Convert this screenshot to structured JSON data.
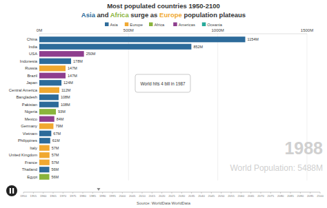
{
  "chart_data": {
    "type": "bar",
    "orientation": "horizontal",
    "title": "Most populated countries 1950-2100",
    "subtitle_parts": [
      {
        "text": "Asia",
        "color": "#2d6b9a"
      },
      {
        "text": " and ",
        "color": "#333333"
      },
      {
        "text": "Africa",
        "color": "#8ab43c"
      },
      {
        "text": " surge as ",
        "color": "#333333"
      },
      {
        "text": "Europe",
        "color": "#f0a830"
      },
      {
        "text": " population plateaus",
        "color": "#333333"
      }
    ],
    "legend_entries": [
      {
        "name": "Asia",
        "color": "#2d6b9a"
      },
      {
        "name": "Europe",
        "color": "#f0a830"
      },
      {
        "name": "Africa",
        "color": "#8ab43c"
      },
      {
        "name": "Americas",
        "color": "#8e3e8e"
      },
      {
        "name": "Oceania",
        "color": "#27a99a"
      }
    ],
    "categories": [
      "China",
      "India",
      "USA",
      "Indonesia",
      "Russia",
      "Brazil",
      "Japan",
      "Central America",
      "Bangladesh",
      "Pakistan",
      "Nigeria",
      "Mexico",
      "Germany",
      "Vietnam",
      "Philippines",
      "Italy",
      "United Kingdom",
      "France",
      "Thailand",
      "Egypt"
    ],
    "values": [
      1154,
      852,
      250,
      178,
      147,
      147,
      124,
      112,
      108,
      108,
      93,
      84,
      79,
      67,
      61,
      57,
      57,
      57,
      56,
      56
    ],
    "value_labels": [
      "1154M",
      "852M",
      "250M",
      "178M",
      "147M",
      "147M",
      "124M",
      "112M",
      "108M",
      "108M",
      "93M",
      "84M",
      "79M",
      "67M",
      "61M",
      "57M",
      "57M",
      "57M",
      "56M",
      "56M"
    ],
    "colors": [
      "#2d6b9a",
      "#2d6b9a",
      "#8e3e8e",
      "#2d6b9a",
      "#f0a830",
      "#8e3e8e",
      "#2d6b9a",
      "#f0a830",
      "#2d6b9a",
      "#2d6b9a",
      "#8ab43c",
      "#8e3e8e",
      "#f0a830",
      "#2d6b9a",
      "#2d6b9a",
      "#f0a830",
      "#f0a830",
      "#f0a830",
      "#2d6b9a",
      "#8ab43c"
    ],
    "data_labels": true,
    "grid": true,
    "xlim": [
      0,
      1500
    ],
    "xticks": [
      {
        "value": 0,
        "label": "0M"
      },
      {
        "value": 500,
        "label": "500M"
      },
      {
        "value": 1000,
        "label": "1000M"
      },
      {
        "value": 1500,
        "label": "1500M"
      }
    ],
    "annotation": "World hits 4 bill in 1987",
    "year_label": "1988",
    "population_label": "World Population: 5488M",
    "timeline": {
      "xlim": [
        1950,
        2100
      ],
      "xticks": [
        1950,
        1955,
        1960,
        1965,
        1970,
        1975,
        1980,
        1985,
        1990,
        1995,
        2000,
        2005,
        2010,
        2015,
        2020,
        2025,
        2030,
        2035,
        2040,
        2045,
        2050,
        2055,
        2060,
        2065,
        2070,
        2075,
        2080,
        2085,
        2090,
        2095,
        2100
      ],
      "current": 1988
    },
    "source": "Source: WorldData WorldData"
  }
}
